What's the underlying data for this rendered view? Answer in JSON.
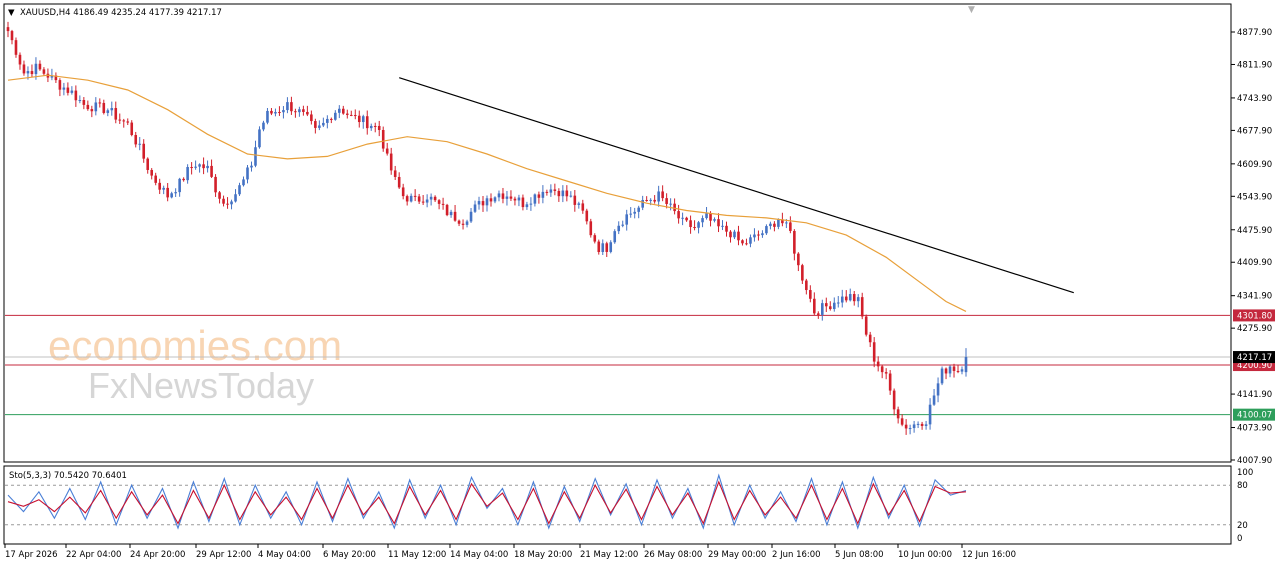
{
  "chart_data": [
    {
      "type": "candlestick",
      "symbol_line": "XAUUSD,H4  4186.49 4235.24 4177.39 4217.17",
      "ohlc_last": {
        "open": 4186.49,
        "high": 4235.24,
        "low": 4177.39,
        "close": 4217.17
      },
      "y_ticks": [
        "4877.90",
        "4811.90",
        "4743.90",
        "4677.90",
        "4609.90",
        "4543.90",
        "4475.90",
        "4409.90",
        "4341.90",
        "4275.90",
        "4141.90",
        "4073.90",
        "4007.90"
      ],
      "ylim": [
        4007.9,
        4877.9
      ],
      "x_labels": [
        "17 Apr 2026",
        "22 Apr 04:00",
        "24 Apr 20:00",
        "29 Apr 12:00",
        "4 May 04:00",
        "6 May 20:00",
        "11 May 12:00",
        "14 May 04:00",
        "18 May 20:00",
        "21 May 12:00",
        "26 May 08:00",
        "29 May 00:00",
        "2 Jun 16:00",
        "5 Jun 08:00",
        "10 Jun 00:00",
        "12 Jun 16:00"
      ],
      "price_path": [
        [
          0,
          4880
        ],
        [
          2,
          4840
        ],
        [
          4,
          4795
        ],
        [
          7,
          4805
        ],
        [
          10,
          4790
        ],
        [
          13,
          4770
        ],
        [
          16,
          4755
        ],
        [
          19,
          4730
        ],
        [
          22,
          4725
        ],
        [
          25,
          4720
        ],
        [
          28,
          4700
        ],
        [
          30,
          4690
        ],
        [
          33,
          4640
        ],
        [
          36,
          4585
        ],
        [
          38,
          4565
        ],
        [
          40,
          4545
        ],
        [
          43,
          4570
        ],
        [
          45,
          4595
        ],
        [
          47,
          4610
        ],
        [
          50,
          4600
        ],
        [
          52,
          4560
        ],
        [
          54,
          4530
        ],
        [
          57,
          4550
        ],
        [
          59,
          4575
        ],
        [
          61,
          4610
        ],
        [
          63,
          4680
        ],
        [
          65,
          4710
        ],
        [
          68,
          4720
        ],
        [
          70,
          4730
        ],
        [
          73,
          4715
        ],
        [
          75,
          4700
        ],
        [
          77,
          4675
        ],
        [
          79,
          4690
        ],
        [
          81,
          4710
        ],
        [
          83,
          4725
        ],
        [
          86,
          4705
        ],
        [
          88,
          4700
        ],
        [
          91,
          4690
        ],
        [
          93,
          4680
        ],
        [
          95,
          4620
        ],
        [
          97,
          4575
        ],
        [
          99,
          4545
        ],
        [
          102,
          4535
        ],
        [
          105,
          4545
        ],
        [
          108,
          4525
        ],
        [
          111,
          4505
        ],
        [
          114,
          4495
        ],
        [
          117,
          4520
        ],
        [
          120,
          4540
        ],
        [
          123,
          4550
        ],
        [
          126,
          4545
        ],
        [
          129,
          4530
        ],
        [
          132,
          4545
        ],
        [
          135,
          4560
        ],
        [
          138,
          4555
        ],
        [
          141,
          4540
        ],
        [
          144,
          4510
        ],
        [
          146,
          4470
        ],
        [
          148,
          4440
        ],
        [
          150,
          4440
        ],
        [
          152,
          4480
        ],
        [
          155,
          4505
        ],
        [
          158,
          4520
        ],
        [
          160,
          4535
        ],
        [
          163,
          4545
        ],
        [
          166,
          4520
        ],
        [
          169,
          4490
        ],
        [
          172,
          4480
        ],
        [
          175,
          4500
        ],
        [
          178,
          4480
        ],
        [
          181,
          4470
        ],
        [
          184,
          4445
        ],
        [
          187,
          4460
        ],
        [
          190,
          4475
        ],
        [
          193,
          4500
        ],
        [
          196,
          4470
        ],
        [
          198,
          4400
        ],
        [
          200,
          4360
        ],
        [
          202,
          4310
        ],
        [
          205,
          4320
        ],
        [
          208,
          4335
        ],
        [
          211,
          4340
        ],
        [
          213,
          4330
        ],
        [
          215,
          4265
        ],
        [
          217,
          4215
        ],
        [
          220,
          4175
        ],
        [
          222,
          4120
        ],
        [
          224,
          4080
        ],
        [
          226,
          4075
        ],
        [
          228,
          4085
        ],
        [
          230,
          4090
        ],
        [
          232,
          4140
        ],
        [
          234,
          4185
        ],
        [
          236,
          4200
        ],
        [
          238,
          4190
        ],
        [
          240,
          4215
        ]
      ],
      "moving_average": [
        [
          0,
          4780
        ],
        [
          10,
          4790
        ],
        [
          20,
          4780
        ],
        [
          30,
          4760
        ],
        [
          40,
          4720
        ],
        [
          50,
          4670
        ],
        [
          60,
          4630
        ],
        [
          70,
          4620
        ],
        [
          80,
          4625
        ],
        [
          90,
          4650
        ],
        [
          100,
          4665
        ],
        [
          110,
          4655
        ],
        [
          120,
          4630
        ],
        [
          130,
          4600
        ],
        [
          140,
          4575
        ],
        [
          150,
          4550
        ],
        [
          160,
          4530
        ],
        [
          170,
          4515
        ],
        [
          180,
          4505
        ],
        [
          190,
          4500
        ],
        [
          200,
          4490
        ],
        [
          210,
          4465
        ],
        [
          220,
          4420
        ],
        [
          230,
          4360
        ],
        [
          235,
          4330
        ],
        [
          240,
          4310
        ]
      ],
      "trendline": {
        "x": [
          98,
          267
        ],
        "y": [
          4785,
          4348
        ]
      },
      "horizontal_levels": [
        {
          "label": "4301.80",
          "value": 4301.8,
          "color": "#c4283d"
        },
        {
          "label": "4200.90",
          "value": 4200.9,
          "color": "#c4283d"
        },
        {
          "label": "4100.07",
          "value": 4100.07,
          "color": "#2e9e5b"
        }
      ],
      "current_price": {
        "label": "4217.17",
        "value": 4217.17
      },
      "colors": {
        "up": "#4472c4",
        "down": "#d21f2a",
        "ma": "#e8a03a",
        "trend": "#000000"
      },
      "watermark": {
        "line1": "economies.com",
        "line2": "FxNewsToday"
      }
    },
    {
      "type": "line",
      "title": "Sto(5,3,3) 70.5420 70.6401",
      "y_ticks": [
        "100",
        "80",
        "20",
        "0"
      ],
      "ylim": [
        0,
        100
      ],
      "levels": [
        80,
        20
      ],
      "series": [
        {
          "color": "#4a7fd6",
          "values": [
            65,
            40,
            70,
            30,
            75,
            28,
            85,
            20,
            80,
            30,
            75,
            15,
            85,
            25,
            90,
            20,
            80,
            30,
            70,
            20,
            85,
            25,
            90,
            30,
            70,
            15,
            88,
            30,
            80,
            20,
            92,
            45,
            75,
            20,
            85,
            15,
            78,
            25,
            90,
            35,
            82,
            20,
            88,
            30,
            75,
            15,
            95,
            20,
            80,
            30,
            70,
            25,
            90,
            20,
            85,
            15,
            92,
            30,
            80,
            18,
            88,
            65,
            72
          ]
        },
        {
          "color": "#c8102e",
          "values": [
            55,
            48,
            58,
            40,
            62,
            38,
            72,
            30,
            70,
            35,
            65,
            22,
            72,
            30,
            80,
            28,
            70,
            35,
            62,
            28,
            75,
            30,
            80,
            35,
            62,
            22,
            78,
            35,
            72,
            28,
            82,
            48,
            68,
            28,
            75,
            22,
            70,
            30,
            80,
            38,
            74,
            28,
            78,
            35,
            68,
            22,
            85,
            28,
            72,
            35,
            62,
            30,
            80,
            28,
            75,
            22,
            82,
            35,
            72,
            25,
            78,
            68,
            70
          ]
        }
      ]
    }
  ]
}
